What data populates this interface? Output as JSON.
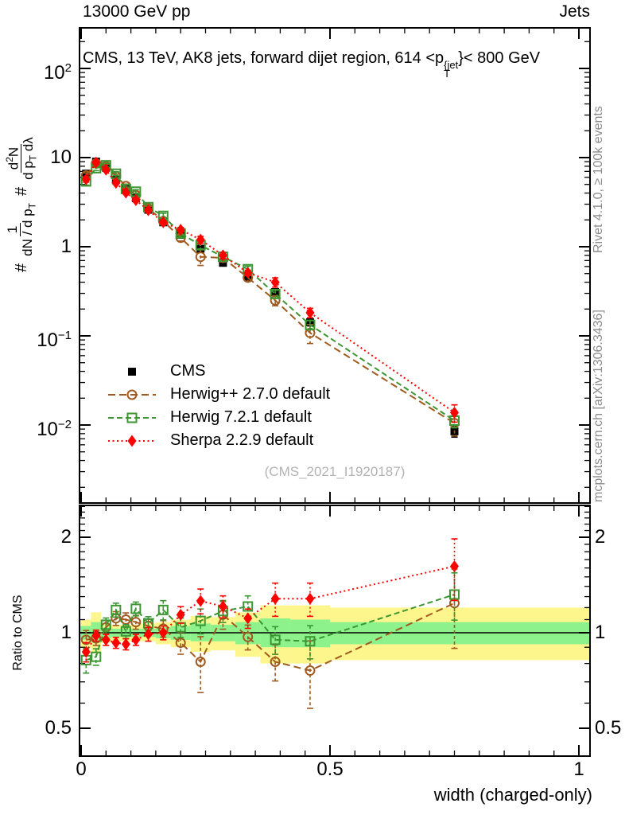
{
  "header": {
    "left": "13000 GeV pp",
    "right": "Jets"
  },
  "panel_title": {
    "a": "CMS, 13 TeV, AK8 jets, forward dijet region, 614 <p",
    "sup": "{jet",
    "sub": "T",
    "b": "}< 800 GeV"
  },
  "y_title": {
    "hash1": "#",
    "num1": "1",
    "den1": "dN / d p",
    "den1_sub": "T",
    "hash2": "#",
    "num2": "d",
    "num2_sup": "2",
    "num2b": "N",
    "den2": "d p",
    "den2_sub": "T",
    "den2b": " dλ"
  },
  "ratio_ylabel": "Ratio to CMS",
  "watermark": "(CMS_2021_I1920187)",
  "side_notes": {
    "top": "Rivet 4.1.0, ≥ 100k events",
    "bottom": "mcplots.cern.ch [arXiv:1306.3436]"
  },
  "axes": {
    "x": {
      "title": "width (charged-only)",
      "min": 0,
      "max": 1,
      "minor_step": 0.05,
      "labels": [
        {
          "v": 0,
          "t": "0"
        },
        {
          "v": 0.5,
          "t": "0.5"
        },
        {
          "v": 1,
          "t": "1"
        }
      ]
    },
    "main_y": [
      {
        "v": 100,
        "b": "10",
        "e": "2"
      },
      {
        "v": 10,
        "b": "10",
        "e": ""
      },
      {
        "v": 1,
        "b": "1",
        "e": ""
      },
      {
        "v": 0.1,
        "b": "10",
        "e": "−1"
      },
      {
        "v": 0.01,
        "b": "10",
        "e": "−2"
      }
    ],
    "ratio_y": [
      {
        "v": 2,
        "t": "2"
      },
      {
        "v": 1,
        "t": "1"
      },
      {
        "v": 0.5,
        "t": "0.5"
      }
    ]
  },
  "chart_data": [
    {
      "id": "main",
      "type": "scatter",
      "yscale": "log",
      "xlim": [
        0,
        1.02
      ],
      "ylim": [
        0.0013,
        285
      ],
      "x": [
        0.01,
        0.03,
        0.05,
        0.07,
        0.09,
        0.11,
        0.135,
        0.165,
        0.2,
        0.24,
        0.285,
        0.335,
        0.39,
        0.46,
        0.75
      ],
      "bin_edges": [
        0,
        0.02,
        0.04,
        0.06,
        0.08,
        0.1,
        0.12,
        0.15,
        0.18,
        0.22,
        0.26,
        0.31,
        0.36,
        0.42,
        0.5,
        1.0
      ],
      "series": [
        {
          "name": "CMS",
          "color": "#000000",
          "marker": "square-filled",
          "line": "none",
          "values": [
            6.6,
            9.0,
            7.7,
            5.6,
            4.4,
            3.5,
            2.6,
            1.88,
            1.36,
            0.95,
            0.66,
            0.46,
            0.31,
            0.142,
            0.0085
          ],
          "rel_err": [
            0.05,
            0.04,
            0.04,
            0.04,
            0.04,
            0.04,
            0.04,
            0.04,
            0.05,
            0.05,
            0.06,
            0.06,
            0.07,
            0.09,
            0.14
          ]
        },
        {
          "name": "Herwig++ 2.7.0 default",
          "color": "#a05a20",
          "marker": "circle-open",
          "line": "dashed",
          "dash": "9 5",
          "values": [
            6.3,
            8.6,
            8.0,
            6.2,
            4.8,
            3.8,
            2.7,
            1.94,
            1.26,
            0.77,
            0.75,
            0.45,
            0.25,
            0.108,
            0.0105
          ],
          "ratio": [
            0.95,
            0.96,
            1.04,
            1.11,
            1.1,
            1.08,
            1.05,
            1.03,
            0.93,
            0.81,
            1.14,
            0.97,
            0.81,
            0.76,
            1.24
          ],
          "rel_err": [
            0.07,
            0.05,
            0.05,
            0.05,
            0.05,
            0.05,
            0.05,
            0.06,
            0.08,
            0.2,
            0.1,
            0.09,
            0.13,
            0.24,
            0.28
          ]
        },
        {
          "name": "Herwig 7.2.1 default",
          "color": "#3c9632",
          "marker": "square-open",
          "line": "dashed",
          "dash": "7 4",
          "values": [
            5.4,
            7.6,
            8.2,
            6.6,
            4.45,
            4.15,
            2.78,
            2.22,
            1.41,
            1.04,
            0.77,
            0.56,
            0.295,
            0.133,
            0.0112
          ],
          "ratio": [
            0.82,
            0.84,
            1.06,
            1.18,
            1.01,
            1.19,
            1.07,
            1.18,
            1.04,
            1.09,
            1.17,
            1.21,
            0.95,
            0.94,
            1.32
          ],
          "rel_err": [
            0.09,
            0.06,
            0.05,
            0.05,
            0.05,
            0.05,
            0.05,
            0.07,
            0.07,
            0.09,
            0.08,
            0.08,
            0.1,
            0.12,
            0.17
          ]
        },
        {
          "name": "Sherpa 2.2.9 default",
          "color": "#ff0000",
          "marker": "diamond-filled",
          "line": "dotted",
          "dash": "2 3.5",
          "values": [
            5.7,
            8.8,
            7.3,
            5.2,
            4.05,
            3.33,
            2.57,
            1.88,
            1.55,
            1.2,
            0.8,
            0.51,
            0.4,
            0.182,
            0.0138
          ],
          "ratio": [
            0.87,
            0.98,
            0.95,
            0.93,
            0.92,
            0.95,
            0.99,
            1.0,
            1.14,
            1.26,
            1.21,
            1.11,
            1.28,
            1.28,
            1.62
          ],
          "rel_err": [
            0.07,
            0.04,
            0.04,
            0.04,
            0.04,
            0.04,
            0.05,
            0.05,
            0.06,
            0.09,
            0.08,
            0.07,
            0.12,
            0.12,
            0.22
          ]
        }
      ]
    },
    {
      "id": "ratio",
      "type": "scatter",
      "yscale": "log",
      "ylim": [
        0.41,
        2.52
      ],
      "unity_line": 1,
      "bands": {
        "yellow": {
          "color": "#fdf68d",
          "lo": [
            0.9,
            0.86,
            0.93,
            0.94,
            0.94,
            0.94,
            0.94,
            0.92,
            0.9,
            0.87,
            0.88,
            0.84,
            0.8,
            0.8,
            0.82
          ],
          "hi": [
            1.1,
            1.16,
            1.07,
            1.06,
            1.06,
            1.06,
            1.07,
            1.08,
            1.1,
            1.13,
            1.12,
            1.16,
            1.22,
            1.22,
            1.2
          ]
        },
        "green": {
          "color": "#8df28c",
          "lo": [
            0.95,
            0.93,
            0.96,
            0.97,
            0.97,
            0.97,
            0.97,
            0.96,
            0.95,
            0.94,
            0.94,
            0.92,
            0.9,
            0.9,
            0.92
          ],
          "hi": [
            1.05,
            1.08,
            1.04,
            1.03,
            1.03,
            1.03,
            1.03,
            1.04,
            1.05,
            1.07,
            1.06,
            1.08,
            1.11,
            1.1,
            1.08
          ]
        }
      }
    }
  ]
}
